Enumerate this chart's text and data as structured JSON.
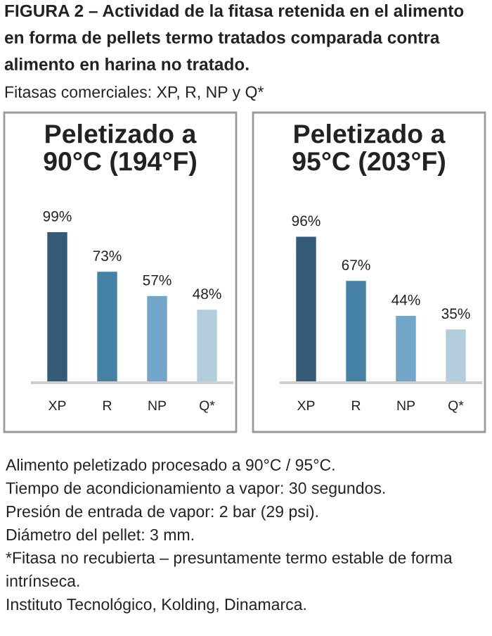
{
  "chart_data": [
    {
      "type": "other",
      "title": "FIGURA 2 – Actividad de la fitasa retenida en el alimento en forma de pellets termo tratados comparada contra alimento en harina no tratado.",
      "subtitle": "Fitasas comerciales: XP, R, NP y Q*"
    },
    {
      "type": "bar",
      "title": "Peletizado a\n90°C (194°F)",
      "categories": [
        "XP",
        "R",
        "NP",
        "Q*"
      ],
      "values": [
        99,
        73,
        57,
        48
      ],
      "colors": [
        "#335b78",
        "#4681a6",
        "#72a6c8",
        "#b4cddd"
      ],
      "data_labels": true,
      "value_labels": [
        "99%",
        "73%",
        "57%",
        "48%"
      ]
    },
    {
      "type": "bar",
      "title": "Peletizado a\n95°C (203°F)",
      "categories": [
        "XP",
        "R",
        "NP",
        "Q*"
      ],
      "values": [
        96,
        67,
        44,
        35
      ],
      "colors": [
        "#335b78",
        "#4681a6",
        "#72a6c8",
        "#b4cddd"
      ],
      "data_labels": true,
      "value_labels": [
        "96%",
        "67%",
        "44%",
        "35%"
      ]
    },
    {
      "type": "other",
      "annotations": [
        "Alimento peletizado procesado a 90°C / 95°C.",
        "Tiempo de acondicionamiento a vapor: 30 segundos.",
        "Presión de entrada de vapor: 2 bar (29 psi).",
        "Diámetro del pellet: 3 mm.",
        "*Fitasa no recubierta – presuntamente termo estable de forma intrínseca.",
        "Instituto Tecnológico, Kolding, Dinamarca."
      ]
    }
  ]
}
